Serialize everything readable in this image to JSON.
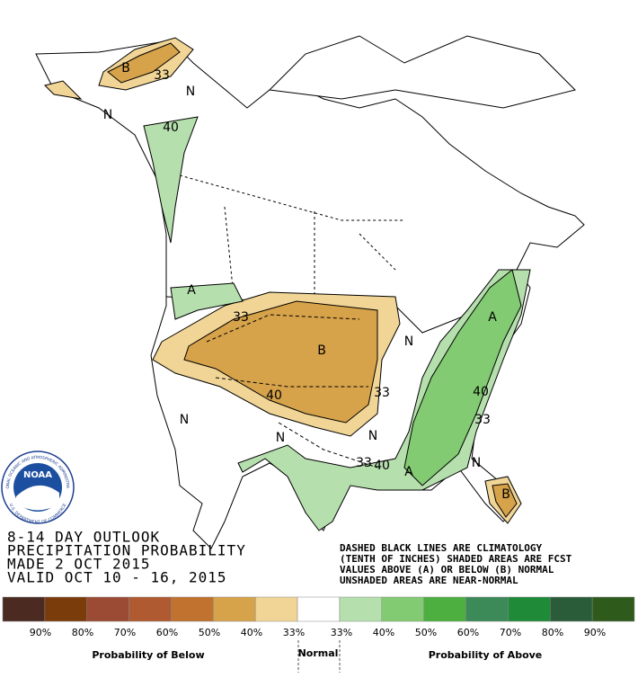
{
  "header": {
    "lines": [
      "8-14 DAY OUTLOOK",
      "PRECIPITATION PROBABILITY",
      "MADE  2 OCT 2015",
      "VALID  OCT 10 - 16, 2015"
    ]
  },
  "notes": [
    "DASHED BLACK LINES ARE CLIMATOLOGY",
    "(TENTH OF INCHES) SHADED AREAS ARE FCST",
    "VALUES ABOVE (A) OR BELOW (B) NORMAL",
    "UNSHADED AREAS ARE NEAR-NORMAL"
  ],
  "logo": {
    "text": "NOAA",
    "ring_top": "NATIONAL OCEANIC AND ATMOSPHERIC ADMINISTRATION",
    "ring_bottom": "U.S. DEPARTMENT OF COMMERCE"
  },
  "map": {
    "labels": [
      "B",
      "33",
      "N",
      "N",
      "40",
      "A",
      "33",
      "B",
      "40",
      "33",
      "N",
      "N",
      "N",
      "N",
      "33",
      "40",
      "A",
      "A",
      "40",
      "33",
      "N",
      "B"
    ]
  },
  "legend": {
    "colors": [
      "#4b2a22",
      "#7b3c0c",
      "#9b4b33",
      "#b05a32",
      "#c0722e",
      "#d6a24a",
      "#f1d596",
      "#ffffff",
      "#b6dfae",
      "#82cb72",
      "#4daf40",
      "#3c8a58",
      "#1f8b38",
      "#2a5c3a",
      "#2e5a1c"
    ],
    "below_labels": [
      "90%",
      "80%",
      "70%",
      "60%",
      "50%",
      "40%",
      "33%"
    ],
    "above_labels": [
      "33%",
      "40%",
      "50%",
      "60%",
      "70%",
      "80%",
      "90%"
    ],
    "below_title": "Probability of Below",
    "normal_title": "Normal",
    "above_title": "Probability of Above"
  }
}
